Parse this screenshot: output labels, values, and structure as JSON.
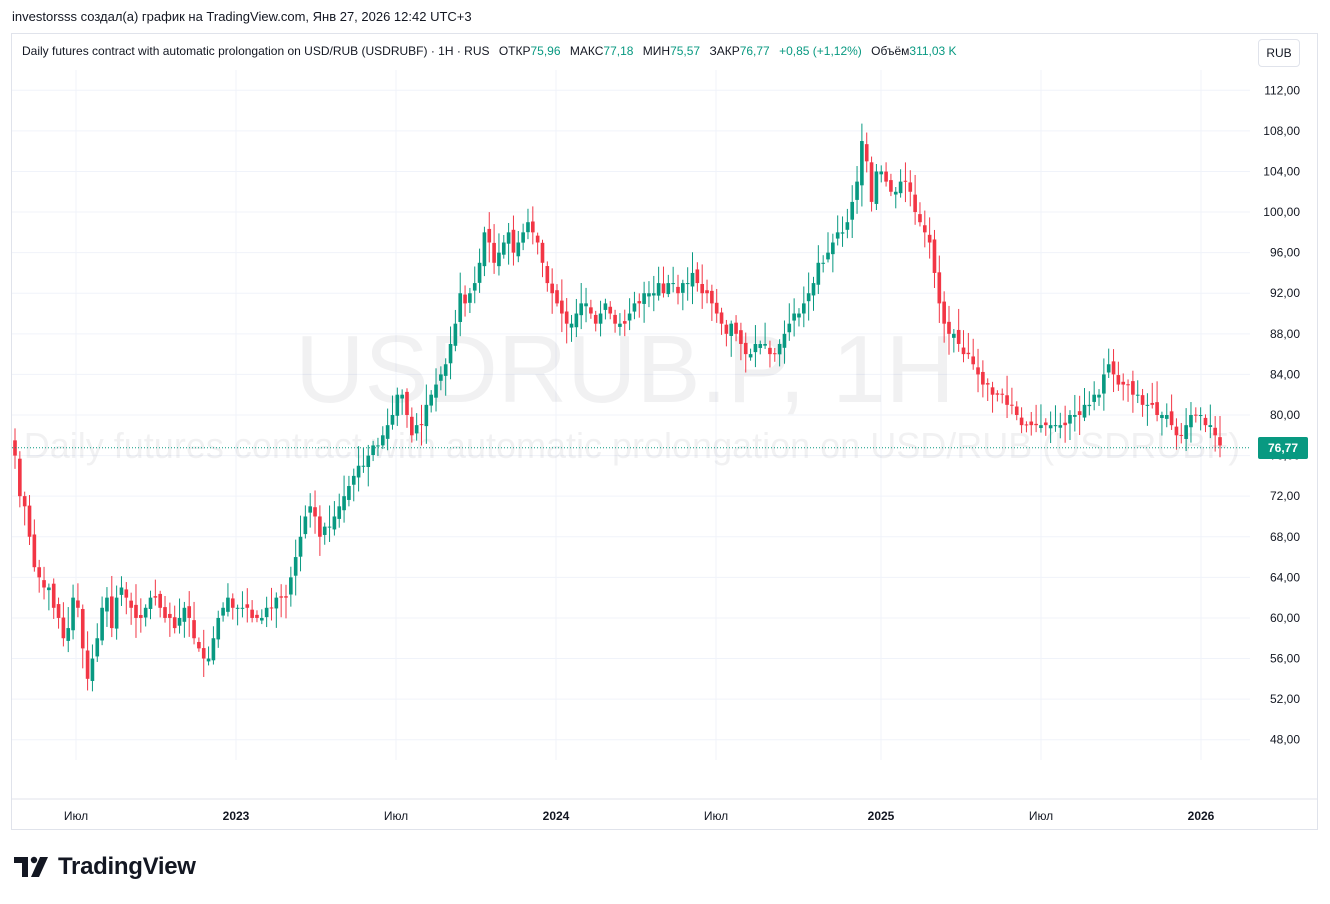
{
  "caption": "investorsss создал(а) график на TradingView.com, Янв 27, 2026 12:42 UTC+3",
  "legend": {
    "title": "Daily futures contract with automatic prolongation on USD/RUB (USDRUBF) · 1H · RUS",
    "open_label": "ОТКР",
    "open": "75,96",
    "high_label": "МАКС",
    "high": "77,18",
    "low_label": "МИН",
    "low": "75,57",
    "close_label": "ЗАКР",
    "close": "76,77",
    "change": "+0,85 (+1,12%)",
    "volume_label": "Объём",
    "volume": "311,03 K"
  },
  "currency_button": "RUB",
  "watermark": {
    "symbol": "USDRUB.P, 1H",
    "description": "Daily futures contract with automatic prolongation on USD/RUB (USDRUBF)"
  },
  "last_price_label": "76,77",
  "brand": {
    "name": "TradingView"
  },
  "colors": {
    "up": "#089981",
    "down": "#f23645",
    "grid": "#f0f3fa",
    "text": "#131722"
  },
  "chart_data": {
    "type": "candlestick",
    "title": "",
    "xlabel": "",
    "ylabel": "",
    "ylim": [
      46,
      114
    ],
    "y_ticks": [
      "112,00",
      "108,00",
      "104,00",
      "100,00",
      "96,00",
      "92,00",
      "88,00",
      "84,00",
      "80,00",
      "76,00",
      "72,00",
      "68,00",
      "64,00",
      "60,00",
      "56,00",
      "52,00",
      "48,00"
    ],
    "x_ticks": [
      "Июл",
      "2023",
      "Июл",
      "2024",
      "Июл",
      "2025",
      "Июл",
      "2026"
    ],
    "last_price": 76.77,
    "close_series": [
      76,
      72,
      71,
      68,
      65,
      64,
      63,
      63,
      61,
      60,
      58,
      59,
      62,
      61,
      57,
      54,
      56,
      58,
      61,
      62,
      59,
      62,
      63,
      62,
      61,
      60,
      60,
      61,
      62,
      62,
      61,
      60,
      60,
      59,
      60,
      61,
      60,
      58,
      57,
      56,
      56,
      58,
      60,
      61,
      62,
      61,
      61,
      61,
      61,
      60,
      60,
      60,
      61,
      61,
      62,
      62,
      62,
      64,
      66,
      68,
      70,
      71,
      70,
      68,
      69,
      69,
      70,
      71,
      72,
      73,
      74,
      75,
      75,
      76,
      77,
      77,
      78,
      79,
      80,
      82,
      82,
      80,
      78,
      79,
      79,
      81,
      82,
      83,
      84,
      85,
      87,
      89,
      92,
      91,
      92,
      93,
      95,
      98,
      97,
      95,
      96,
      97,
      98,
      96,
      97,
      98,
      99,
      98,
      97,
      95,
      93,
      92,
      91,
      90,
      89,
      89,
      90,
      91,
      91,
      90,
      89,
      90,
      91,
      90,
      89,
      89,
      89,
      90,
      91,
      91,
      92,
      92,
      92,
      93,
      92,
      93,
      93,
      92,
      93,
      93,
      94,
      93,
      92,
      92,
      91,
      90,
      89,
      88,
      89,
      88,
      87,
      86,
      86,
      87,
      87,
      87,
      86,
      86,
      87,
      88,
      89,
      90,
      90,
      91,
      92,
      93,
      95,
      95,
      96,
      97,
      98,
      98,
      99,
      101,
      103,
      107,
      105,
      101,
      104,
      104,
      103,
      102,
      102,
      103,
      103,
      102,
      100,
      99,
      98,
      97,
      94,
      91,
      89,
      88,
      88,
      87,
      86,
      86,
      85,
      84,
      83,
      83,
      82,
      82,
      82,
      81,
      81,
      80,
      79,
      79,
      79,
      79,
      79,
      79,
      79,
      79,
      79,
      79,
      80,
      80,
      80,
      81,
      81,
      82,
      82,
      84,
      85,
      84,
      83,
      83,
      83,
      82,
      82,
      81,
      81,
      81,
      80,
      80,
      80,
      79,
      78,
      78,
      79,
      80,
      80,
      80,
      79,
      79,
      78,
      77
    ]
  }
}
